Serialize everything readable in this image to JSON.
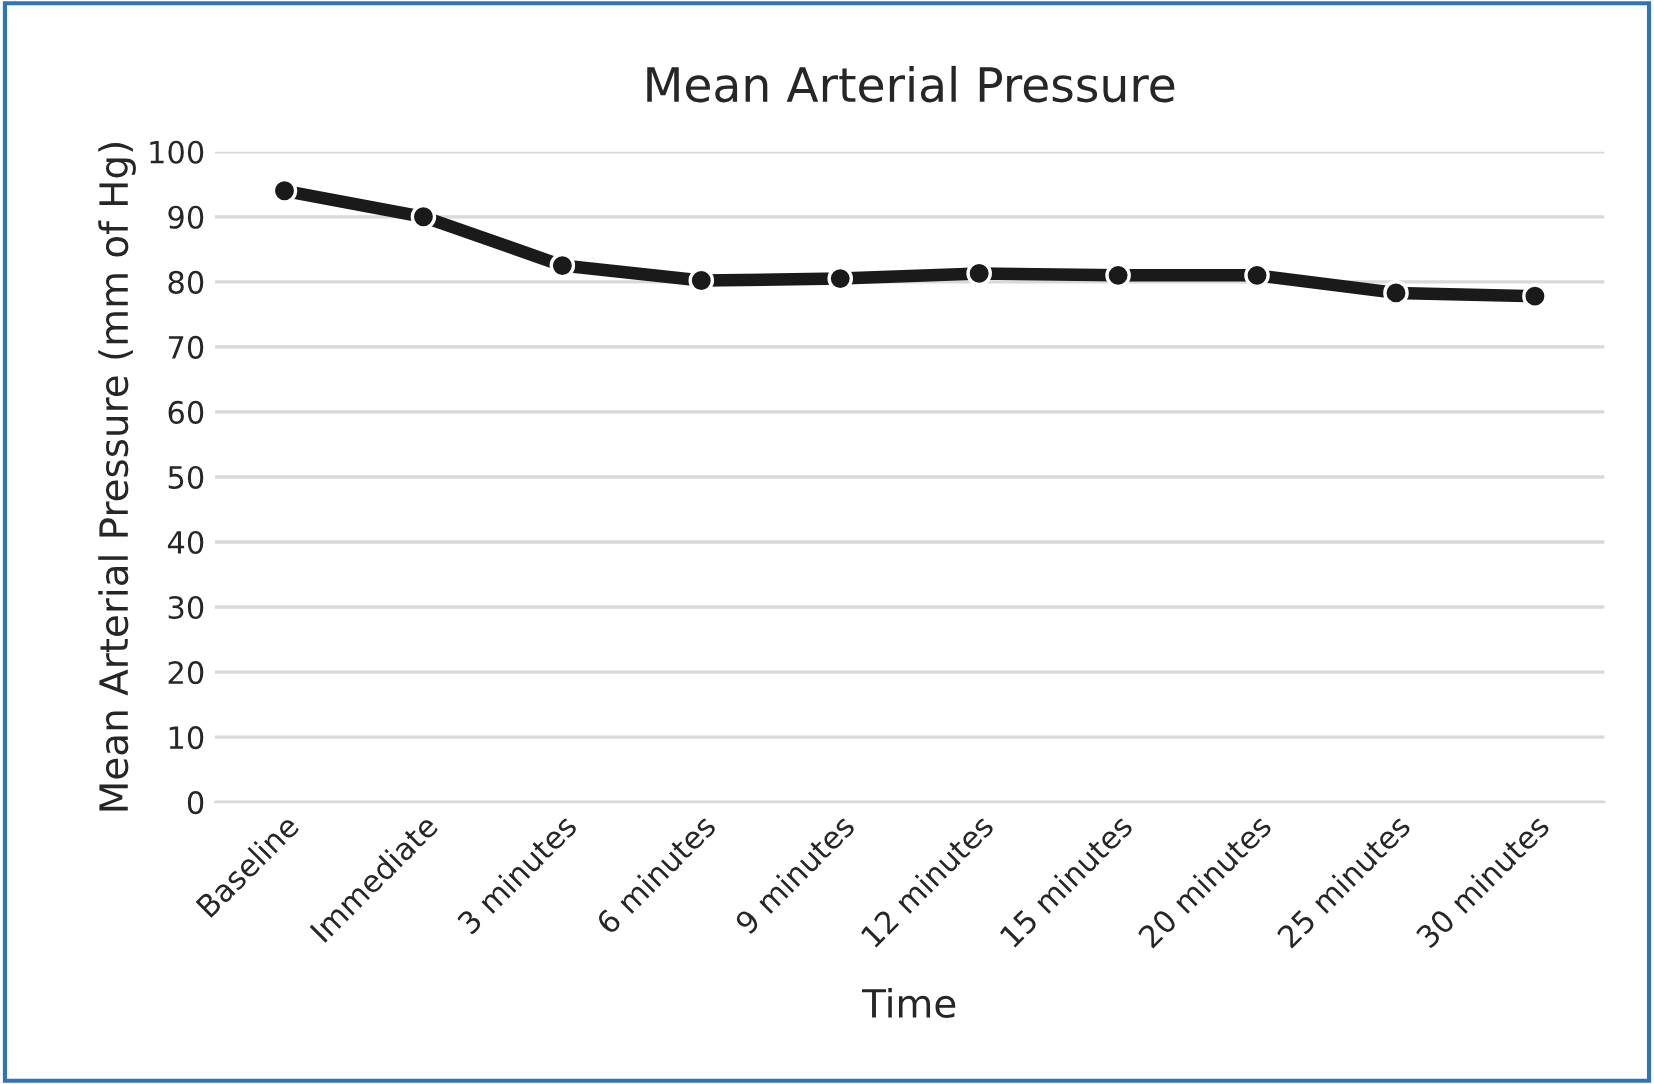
{
  "chart_data": {
    "type": "line",
    "title": "Mean Arterial Pressure",
    "xlabel": "Time",
    "ylabel": "Mean Arterial Pressure (mm of Hg)",
    "categories": [
      "Baseline",
      "Immediate",
      "3 minutes",
      "6 minutes",
      "9 minutes",
      "12 minutes",
      "15 minutes",
      "20 minutes",
      "25 minutes",
      "30 minutes"
    ],
    "series": [
      {
        "color": "#1a1a1a",
        "values": [
          94,
          90,
          82.5,
          80.2,
          80.5,
          81.3,
          81,
          81,
          78.3,
          77.8
        ]
      }
    ],
    "ylim": [
      0,
      100
    ],
    "yticks": [
      0,
      10,
      20,
      30,
      40,
      50,
      60,
      70,
      80,
      90,
      100
    ],
    "grid": "y",
    "marker": "circle",
    "line_style": "solid"
  }
}
